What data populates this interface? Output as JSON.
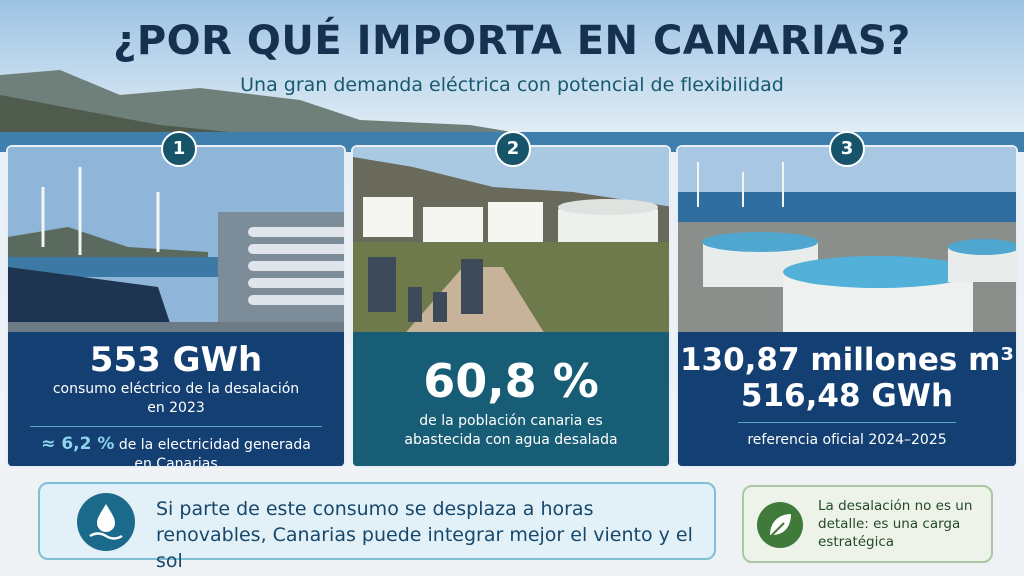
{
  "header": {
    "title": "¿POR QUÉ IMPORTA EN CANARIAS?",
    "subtitle": "Una gran demanda eléctrica con potencial de flexibilidad"
  },
  "cards": [
    {
      "badge": "1",
      "headline": "553 GWh",
      "text": "consumo eléctrico de la desalación en 2023",
      "note_highlight": "≈ 6,2 %",
      "note": "de la electricidad generada en Canarias"
    },
    {
      "badge": "2",
      "headline": "60,8 %",
      "text": "de la población canaria es abastecida con agua desalada"
    },
    {
      "badge": "3",
      "headline": "130,87 millones m³",
      "headline2": "516,48 GWh",
      "note": "referencia oficial 2024–2025"
    }
  ],
  "footer": {
    "message": "Si parte de este consumo se desplaza a horas renovables, Canarias puede integrar mejor el viento y el sol",
    "aside": "La desalación no es un detalle: es una carga estratégica"
  }
}
